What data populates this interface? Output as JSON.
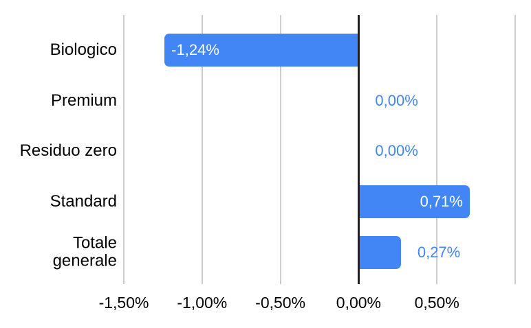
{
  "chart_data": {
    "type": "bar",
    "orientation": "horizontal",
    "title": "",
    "categories": [
      "Biologico",
      "Premium",
      "Residuo zero",
      "Standard",
      "Totale generale"
    ],
    "values": [
      -1.24,
      0,
      0,
      0.71,
      0.27
    ],
    "data_labels": [
      "-1,24%",
      "0,00%",
      "0,00%",
      "0,71%",
      "0,27%"
    ],
    "data_label_placement": [
      "inside-end",
      "outside-end",
      "outside-end",
      "inside-end",
      "outside-end"
    ],
    "x_axis": {
      "min": -1.5,
      "max": 1.0,
      "gridline_step": 0.5,
      "tick_values": [
        -1.5,
        -1.0,
        -0.5,
        0.0,
        0.5
      ],
      "tick_labels": [
        "-1,50%",
        "-1,00%",
        "-0,50%",
        "0,00%",
        "0,50%"
      ]
    },
    "xlabel": "",
    "ylabel": "",
    "legend": "none",
    "grid": true,
    "colors": {
      "bar": "#4285f4",
      "data_label_inside": "#ffffff",
      "data_label_outside": "#4285f4",
      "axis_text": "#000000",
      "gridline": "#cccccc",
      "zero_axis": "#212121",
      "background": "#ffffff"
    }
  }
}
